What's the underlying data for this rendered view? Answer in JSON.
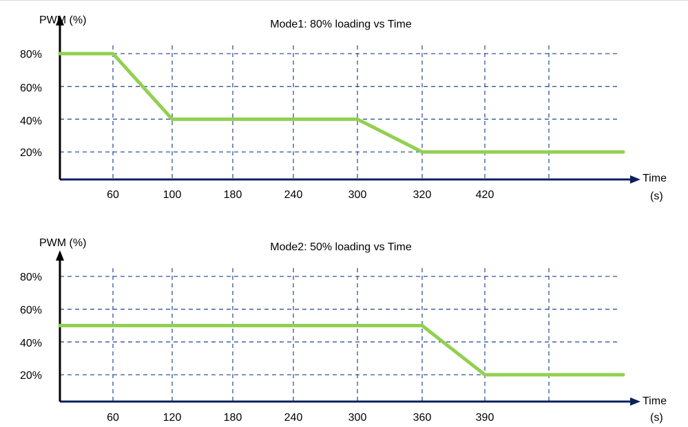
{
  "colors": {
    "axis": "#0b1f5c",
    "grid": "#2f5597",
    "series": "#92d050",
    "text": "#000000"
  },
  "chart_data": [
    {
      "type": "line",
      "title": "Mode1: 80% loading vs Time",
      "ylabel": "PWM (%)",
      "xlabel_line1": "Time",
      "xlabel_line2": "(s)",
      "ytick_labels": [
        "80%",
        "60%",
        "40%",
        "20%"
      ],
      "ytick_values": [
        80,
        60,
        40,
        20
      ],
      "xtick_labels": [
        "60",
        "100",
        "180",
        "240",
        "300",
        "320",
        "420"
      ],
      "grid": true,
      "series": [
        {
          "points": [
            {
              "x": "0",
              "y": 80
            },
            {
              "x": "60",
              "y": 80
            },
            {
              "x": "100",
              "y": 40
            },
            {
              "x": "300",
              "y": 40
            },
            {
              "x": "320",
              "y": 20
            },
            {
              "x": "end",
              "y": 20
            }
          ]
        }
      ]
    },
    {
      "type": "line",
      "title": "Mode2: 50% loading vs Time",
      "ylabel": "PWM (%)",
      "xlabel_line1": "Time",
      "xlabel_line2": "(s)",
      "ytick_labels": [
        "80%",
        "60%",
        "40%",
        "20%"
      ],
      "ytick_values": [
        80,
        60,
        40,
        20
      ],
      "xtick_labels": [
        "60",
        "120",
        "180",
        "240",
        "300",
        "360",
        "390"
      ],
      "grid": true,
      "series": [
        {
          "points": [
            {
              "x": "0",
              "y": 50
            },
            {
              "x": "360",
              "y": 50
            },
            {
              "x": "390",
              "y": 20
            },
            {
              "x": "end",
              "y": 20
            }
          ]
        }
      ]
    }
  ]
}
